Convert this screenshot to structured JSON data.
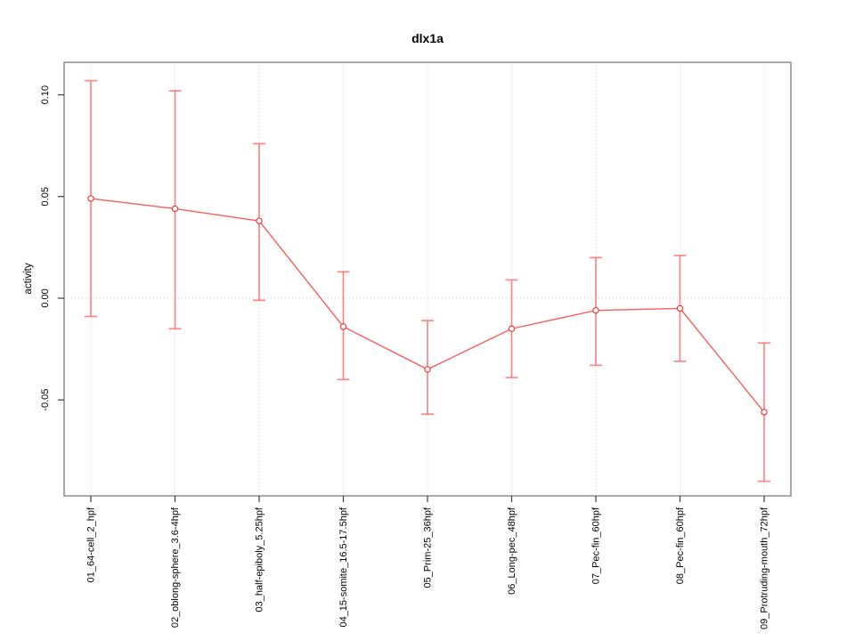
{
  "chart_data": {
    "type": "line",
    "title": "dlx1a",
    "xlabel": "",
    "ylabel": "activity",
    "legend": "none",
    "grid": {
      "style": "dotted",
      "vertical_at_each_category": true,
      "horizontal_at_zero": true
    },
    "categories": [
      "01_64-cell_2_hpf",
      "02_oblong-sphere_3.6-4hpf",
      "03_half-epiboly_5.25hpf",
      "04_15-somite_16.5-17.5hpf",
      "05_Prim-25_36hpf",
      "06_Long-pec_48hpf",
      "07_Pec-fin_60hpf",
      "08_Pec-fin_60hpf",
      "09_Protruding-mouth_72hpf"
    ],
    "series": [
      {
        "name": "activity",
        "marker": "open-circle",
        "values": [
          0.049,
          0.044,
          0.038,
          -0.014,
          -0.035,
          -0.015,
          -0.006,
          -0.005,
          -0.056
        ],
        "error_upper": [
          0.107,
          0.102,
          0.076,
          0.013,
          -0.011,
          0.009,
          0.02,
          0.021,
          -0.022
        ],
        "error_lower": [
          -0.009,
          -0.015,
          -0.001,
          -0.04,
          -0.057,
          -0.039,
          -0.033,
          -0.031,
          -0.09
        ]
      }
    ],
    "yticks": {
      "values": [
        0.1,
        0.05,
        0.0,
        -0.05
      ],
      "labels": [
        "0.10",
        "0.05",
        "0.00",
        "-0.05"
      ]
    },
    "ylim": [
      -0.0972,
      0.116
    ],
    "colors": {
      "series_line": "#fb4b4b",
      "error_bar": "#fc6b6b",
      "marker_stroke": "#f03c3c",
      "marker_fill": "#ffffff",
      "grid": "#d2d2d2",
      "box": "#848484",
      "tick": "#3c3c3c",
      "text": "#000000",
      "background": "#ffffff"
    }
  }
}
